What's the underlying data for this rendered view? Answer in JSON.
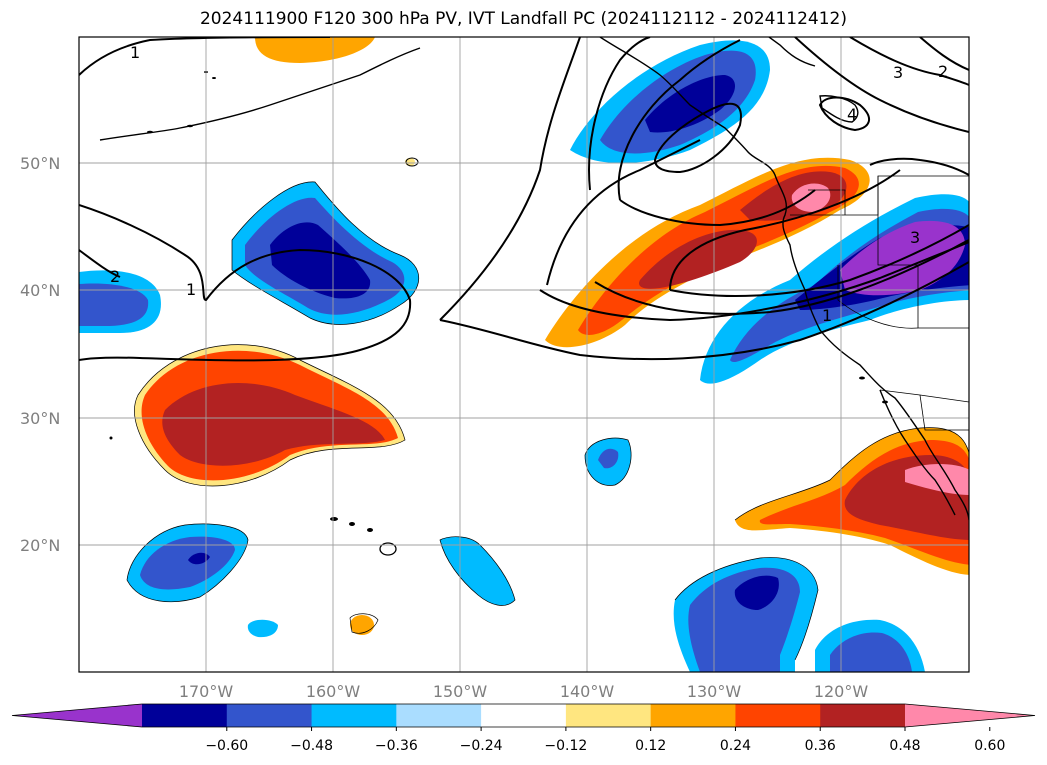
{
  "title": "2024111900 F120 300 hPa PV, IVT Landfall PC (2024112112 - 2024112412)",
  "lat_labels": [
    "50°N",
    "40°N",
    "30°N",
    "20°N"
  ],
  "lon_labels": [
    "170°W",
    "160°W",
    "150°W",
    "140°W",
    "130°W",
    "120°W"
  ],
  "contour_labels": [
    "1",
    "1",
    "2",
    "2",
    "3",
    "3",
    "4",
    "1"
  ],
  "colorbar": {
    "tick_labels": [
      "−0.60",
      "−0.48",
      "−0.36",
      "−0.24",
      "−0.12",
      "0.12",
      "0.24",
      "0.36",
      "0.48",
      "0.60"
    ],
    "colors": [
      "#9933cc",
      "#000099",
      "#3355cc",
      "#00bbff",
      "#aaddff",
      "#ffffff",
      "#ffe680",
      "#ffa500",
      "#ff4400",
      "#b22222",
      "#ff88aa"
    ]
  }
}
